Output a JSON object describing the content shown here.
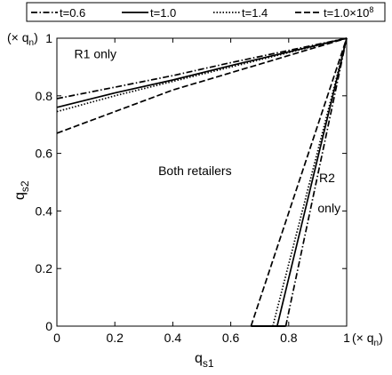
{
  "chart_data": {
    "type": "line",
    "title": "",
    "xlabel": {
      "base": "q",
      "sub": "s1"
    },
    "ylabel": {
      "base": "q",
      "sub": "s2"
    },
    "x_unit": {
      "prefix": "(× q",
      "sub": "n",
      "suffix": ")"
    },
    "y_unit": {
      "prefix": "(× q",
      "sub": "n",
      "suffix": ")"
    },
    "xlim": [
      0,
      1
    ],
    "ylim": [
      0,
      1
    ],
    "xticks": [
      "0",
      "0.2",
      "0.4",
      "0.6",
      "0.8",
      "1"
    ],
    "yticks": [
      "0",
      "0.2",
      "0.4",
      "0.6",
      "0.8",
      "1"
    ],
    "grid": false,
    "legend_position": "top, outside plot area",
    "series": [
      {
        "name": "t=0.6",
        "style": "dashdot",
        "upper": [
          [
            0,
            0.79
          ],
          [
            0.2,
            0.83
          ],
          [
            0.4,
            0.87
          ],
          [
            0.6,
            0.915
          ],
          [
            1,
            1
          ]
        ],
        "lower": [
          [
            0.79,
            0
          ],
          [
            1,
            1
          ]
        ]
      },
      {
        "name": "t=1.0",
        "style": "solid",
        "upper": [
          [
            0,
            0.76
          ],
          [
            0.2,
            0.81
          ],
          [
            0.4,
            0.855
          ],
          [
            0.6,
            0.905
          ],
          [
            1,
            1
          ]
        ],
        "lower": [
          [
            0.76,
            0
          ],
          [
            1,
            1
          ]
        ]
      },
      {
        "name": "t=1.4",
        "style": "dotted",
        "upper": [
          [
            0,
            0.745
          ],
          [
            0.2,
            0.8
          ],
          [
            0.4,
            0.85
          ],
          [
            0.6,
            0.9
          ],
          [
            1,
            1
          ]
        ],
        "lower": [
          [
            0.745,
            0
          ],
          [
            1,
            1
          ]
        ]
      },
      {
        "name": "t=1.0×10",
        "name_sup": "8",
        "style": "dashed",
        "upper": [
          [
            0,
            0.67
          ],
          [
            0.2,
            0.745
          ],
          [
            0.4,
            0.82
          ],
          [
            0.6,
            0.88
          ],
          [
            1,
            1
          ]
        ],
        "lower": [
          [
            0.67,
            0
          ],
          [
            1,
            1
          ]
        ]
      }
    ],
    "zero_line": [
      [
        0.67,
        0
      ],
      [
        0.79,
        0
      ]
    ],
    "annotations": [
      {
        "text": "R1 only",
        "x": 0.06,
        "y": 0.93
      },
      {
        "text": "Both retailers",
        "x": 0.35,
        "y": 0.525
      },
      {
        "text": "R2",
        "x": 0.905,
        "y": 0.5
      },
      {
        "text": "only",
        "x": 0.9,
        "y": 0.395
      }
    ]
  }
}
